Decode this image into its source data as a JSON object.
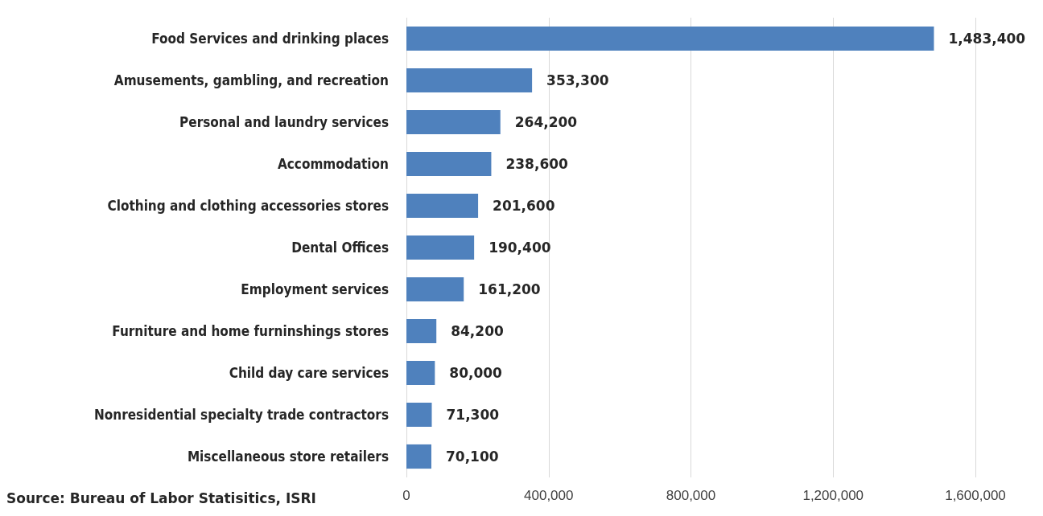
{
  "chart_data": {
    "type": "bar",
    "orientation": "horizontal",
    "categories": [
      "Food Services and drinking places",
      "Amusements, gambling, and recreation",
      "Personal and laundry services",
      "Accommodation",
      "Clothing and clothing accessories stores",
      "Dental Offices",
      "Employment services",
      "Furniture and home furninshings stores",
      "Child day care services",
      "Nonresidential specialty trade contractors",
      "Miscellaneous store retailers"
    ],
    "values": [
      1483400,
      353300,
      264200,
      238600,
      201600,
      190400,
      161200,
      84200,
      80000,
      71300,
      70100
    ],
    "color": "#4f81bd",
    "xlim": [
      0,
      1600000
    ],
    "xticks": [
      {
        "value": 0,
        "label": "0"
      },
      {
        "value": 400000,
        "label": "400,000"
      },
      {
        "value": 800000,
        "label": "800,000"
      },
      {
        "value": 1200000,
        "label": "1,200,000"
      },
      {
        "value": 1600000,
        "label": "1,600,000"
      }
    ],
    "grid": "x",
    "value_labels": [
      "1,483,400",
      "353,300",
      "264,200",
      "238,600",
      "201,600",
      "190,400",
      "161,200",
      "84,200",
      "80,000",
      "71,300",
      "70,100"
    ],
    "annotations": [
      "Source: Bureau of Labor Statisitics, ISRI"
    ]
  }
}
